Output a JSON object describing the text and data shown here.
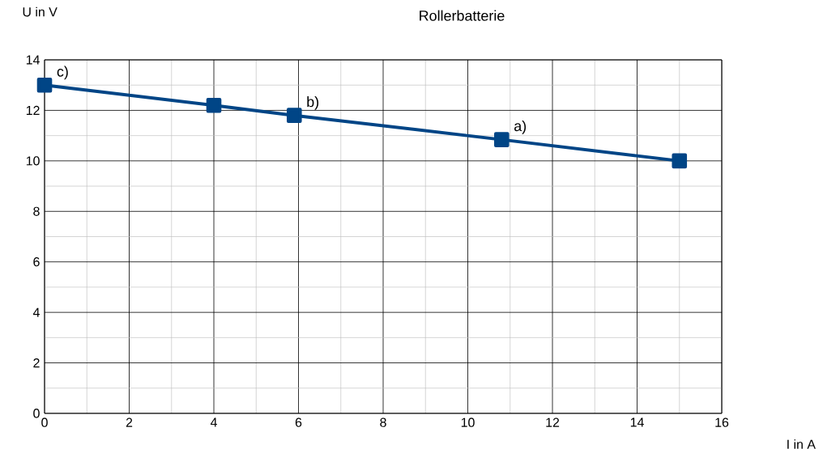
{
  "chart_data": {
    "type": "line",
    "title": "Rollerbatterie",
    "xlabel": "I in A",
    "ylabel": "U in V",
    "x": [
      0,
      4,
      5.9,
      10.8,
      15
    ],
    "series": [
      {
        "color": "#004586",
        "values": [
          13,
          12.2,
          11.8,
          10.84,
          10
        ]
      }
    ],
    "xlim": [
      0,
      16
    ],
    "xticks": [
      0,
      2,
      4,
      6,
      8,
      10,
      12,
      14,
      16
    ],
    "ylim": [
      0,
      14
    ],
    "yticks": [
      0,
      2,
      4,
      6,
      8,
      10,
      12,
      14
    ],
    "grid": true,
    "marker": "square",
    "line_style": "solid",
    "annotations": [
      {
        "text": "a)",
        "x": 10.8,
        "y": 10.84
      },
      {
        "text": "b)",
        "x": 5.9,
        "y": 11.8
      },
      {
        "text": "c)",
        "x": 0,
        "y": 13
      }
    ]
  }
}
